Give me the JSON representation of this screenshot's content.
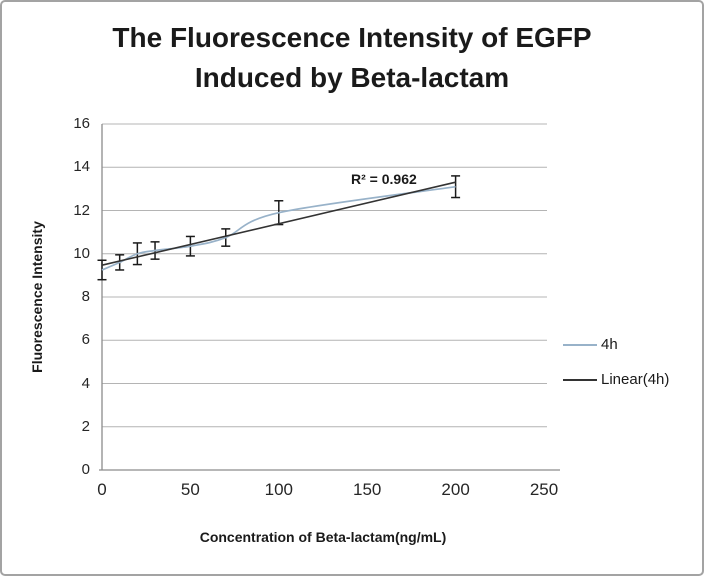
{
  "window": {
    "background": "#ffffff",
    "border_color": "#a3a3a3"
  },
  "chart_data": {
    "type": "line",
    "title": "The Fluorescence Intensity of EGFP Induced by Beta-lactam",
    "title_lines": [
      "The Fluorescence Intensity of EGFP",
      "Induced by Beta-lactam"
    ],
    "xlabel": "Concentration of Beta-lactam(ng/mL)",
    "ylabel": "Fluorescence Intensity",
    "xlim": [
      0,
      250
    ],
    "ylim": [
      0,
      16
    ],
    "x_ticks": [
      0,
      50,
      100,
      150,
      200,
      250
    ],
    "y_ticks": [
      0,
      2,
      4,
      6,
      8,
      10,
      12,
      14,
      16
    ],
    "grid": "horizontal-only",
    "gridline_color": "#b4b4b4",
    "axis_color": "#8c8c8c",
    "annotation": {
      "text": "R² = 0.962"
    },
    "legend_position": "right-middle",
    "series": [
      {
        "name": "4h",
        "type": "smooth-line",
        "color": "#98b2c9",
        "x": [
          0,
          10,
          20,
          30,
          50,
          70,
          100,
          200
        ],
        "y": [
          9.25,
          9.6,
          10.0,
          10.15,
          10.35,
          10.75,
          11.9,
          13.1
        ],
        "y_err": [
          0.45,
          0.35,
          0.5,
          0.4,
          0.45,
          0.4,
          0.55,
          0.5
        ],
        "error_bar_color": "#1a1a1a"
      },
      {
        "name": "Linear(4h)",
        "type": "trendline",
        "color": "#333333",
        "x": [
          0,
          200
        ],
        "y": [
          9.47,
          13.31
        ]
      }
    ]
  }
}
